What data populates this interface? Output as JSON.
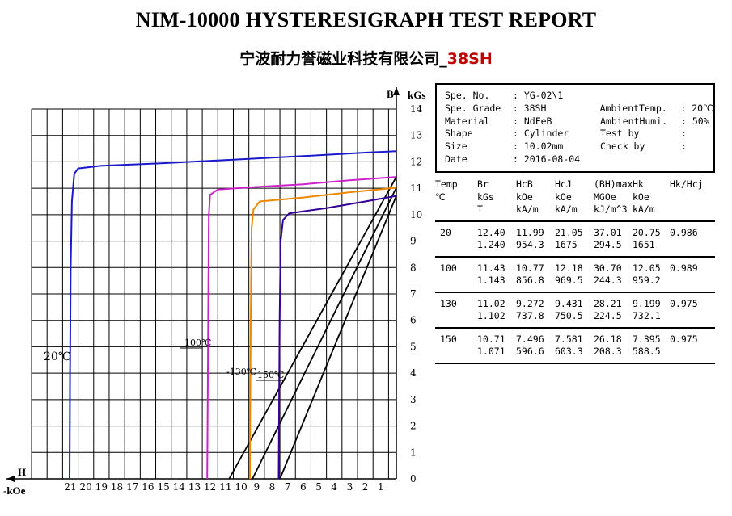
{
  "title": "NIM-10000 HYSTERESIGRAPH TEST REPORT",
  "subtitle_cn": "宁波耐力誉磁业科技有限公司_",
  "subtitle_grade": "38SH",
  "colors": {
    "20": "#1a1acc",
    "100": "#cc22cc",
    "130": "#ee8800",
    "150": "#330099",
    "grid": "#000000"
  },
  "info": {
    "rows": [
      {
        "k": "Spe. No.",
        "v": ": YG-02\\1",
        "k2": "",
        "v2": ""
      },
      {
        "k": "Spe. Grade",
        "v": ": 38SH",
        "k2": "AmbientTemp.",
        "v2": ": 20℃"
      },
      {
        "k": "Material",
        "v": ": NdFeB",
        "k2": "AmbientHumi.",
        "v2": ": 50%"
      },
      {
        "k": "Shape",
        "v": ": Cylinder",
        "k2": "Test by",
        "v2": ":"
      },
      {
        "k": "Size",
        "v": ": 10.02mm",
        "k2": "Check by",
        "v2": ":"
      },
      {
        "k": "Date",
        "v": ": 2016-08-04",
        "k2": "",
        "v2": ""
      }
    ]
  },
  "table": {
    "header": [
      [
        "Temp",
        "℃",
        ""
      ],
      [
        "Br",
        "kGs",
        "T"
      ],
      [
        "HcB",
        "kOe",
        "kA/m"
      ],
      [
        "HcJ",
        "kOe",
        "kA/m"
      ],
      [
        "(BH)max",
        "MGOe",
        "kJ/m^3"
      ],
      [
        "Hk",
        "kOe",
        "kA/m"
      ],
      [
        "Hk/Hcj",
        "",
        ""
      ]
    ],
    "rows": [
      {
        "temp": "20",
        "br": [
          "12.40",
          "1.240"
        ],
        "hcb": [
          "11.99",
          "954.3"
        ],
        "hcj": [
          "21.05",
          "1675"
        ],
        "bh": [
          "37.01",
          "294.5"
        ],
        "hk": [
          "20.75",
          "1651"
        ],
        "ratio": "0.986"
      },
      {
        "temp": "100",
        "br": [
          "11.43",
          "1.143"
        ],
        "hcb": [
          "10.77",
          "856.8"
        ],
        "hcj": [
          "12.18",
          "969.5"
        ],
        "bh": [
          "30.70",
          "244.3"
        ],
        "hk": [
          "12.05",
          "959.2"
        ],
        "ratio": "0.989"
      },
      {
        "temp": "130",
        "br": [
          "11.02",
          "1.102"
        ],
        "hcb": [
          "9.272",
          "737.8"
        ],
        "hcj": [
          "9.431",
          "750.5"
        ],
        "bh": [
          "28.21",
          "224.5"
        ],
        "hk": [
          "9.199",
          "732.1"
        ],
        "ratio": "0.975"
      },
      {
        "temp": "150",
        "br": [
          "10.71",
          "1.071"
        ],
        "hcb": [
          "7.496",
          "596.6"
        ],
        "hcj": [
          "7.581",
          "603.3"
        ],
        "bh": [
          "26.18",
          "208.3"
        ],
        "hk": [
          "7.395",
          "588.5"
        ],
        "ratio": "0.975"
      }
    ]
  },
  "chart_data": {
    "type": "line",
    "title": "",
    "xlabel": "-kOe",
    "xlabel_h": "H",
    "ylabel": "kGs",
    "ylabel_b": "B",
    "xlim": [
      0,
      23.5
    ],
    "ylim": [
      0,
      14
    ],
    "x_ticks": [
      21,
      20,
      19,
      18,
      17,
      16,
      15,
      14,
      13,
      12,
      11,
      10,
      9,
      8,
      7,
      6,
      5,
      4,
      3,
      2,
      1
    ],
    "y_ticks": [
      0,
      1,
      2,
      3,
      4,
      5,
      6,
      7,
      8,
      9,
      10,
      11,
      12,
      13,
      14
    ],
    "grid": true,
    "series": [
      {
        "name": "20℃",
        "label": "20℃",
        "intrinsic": [
          [
            0,
            12.4
          ],
          [
            2,
            12.35
          ],
          [
            5,
            12.25
          ],
          [
            10,
            12.1
          ],
          [
            15,
            11.95
          ],
          [
            19,
            11.85
          ],
          [
            20.5,
            11.75
          ],
          [
            20.75,
            11.55
          ],
          [
            20.9,
            10.5
          ],
          [
            20.98,
            8
          ],
          [
            21.02,
            4
          ],
          [
            21.05,
            0
          ]
        ],
        "normal": []
      },
      {
        "name": "100℃",
        "label": "100℃",
        "intrinsic": [
          [
            0,
            11.43
          ],
          [
            3,
            11.3
          ],
          [
            6,
            11.15
          ],
          [
            9,
            11.05
          ],
          [
            11.5,
            10.95
          ],
          [
            12,
            10.75
          ],
          [
            12.08,
            10
          ],
          [
            12.12,
            6
          ],
          [
            12.16,
            2
          ],
          [
            12.18,
            0
          ]
        ],
        "normal": [
          [
            0,
            11.43
          ],
          [
            10.77,
            0
          ]
        ]
      },
      {
        "name": "130℃",
        "label": "-130℃",
        "intrinsic": [
          [
            0,
            11.02
          ],
          [
            3,
            10.85
          ],
          [
            6,
            10.65
          ],
          [
            8.8,
            10.5
          ],
          [
            9.2,
            10.2
          ],
          [
            9.32,
            9.5
          ],
          [
            9.38,
            6
          ],
          [
            9.42,
            2
          ],
          [
            9.43,
            0
          ]
        ],
        "normal": [
          [
            0,
            11.02
          ],
          [
            9.272,
            0
          ]
        ]
      },
      {
        "name": "150℃",
        "label": "150℃",
        "intrinsic": [
          [
            0,
            10.71
          ],
          [
            2,
            10.5
          ],
          [
            4.5,
            10.25
          ],
          [
            6.9,
            10.05
          ],
          [
            7.3,
            9.8
          ],
          [
            7.45,
            9
          ],
          [
            7.52,
            6
          ],
          [
            7.56,
            2
          ],
          [
            7.58,
            0
          ]
        ],
        "normal": [
          [
            0,
            10.71
          ],
          [
            7.496,
            0
          ]
        ]
      }
    ]
  }
}
